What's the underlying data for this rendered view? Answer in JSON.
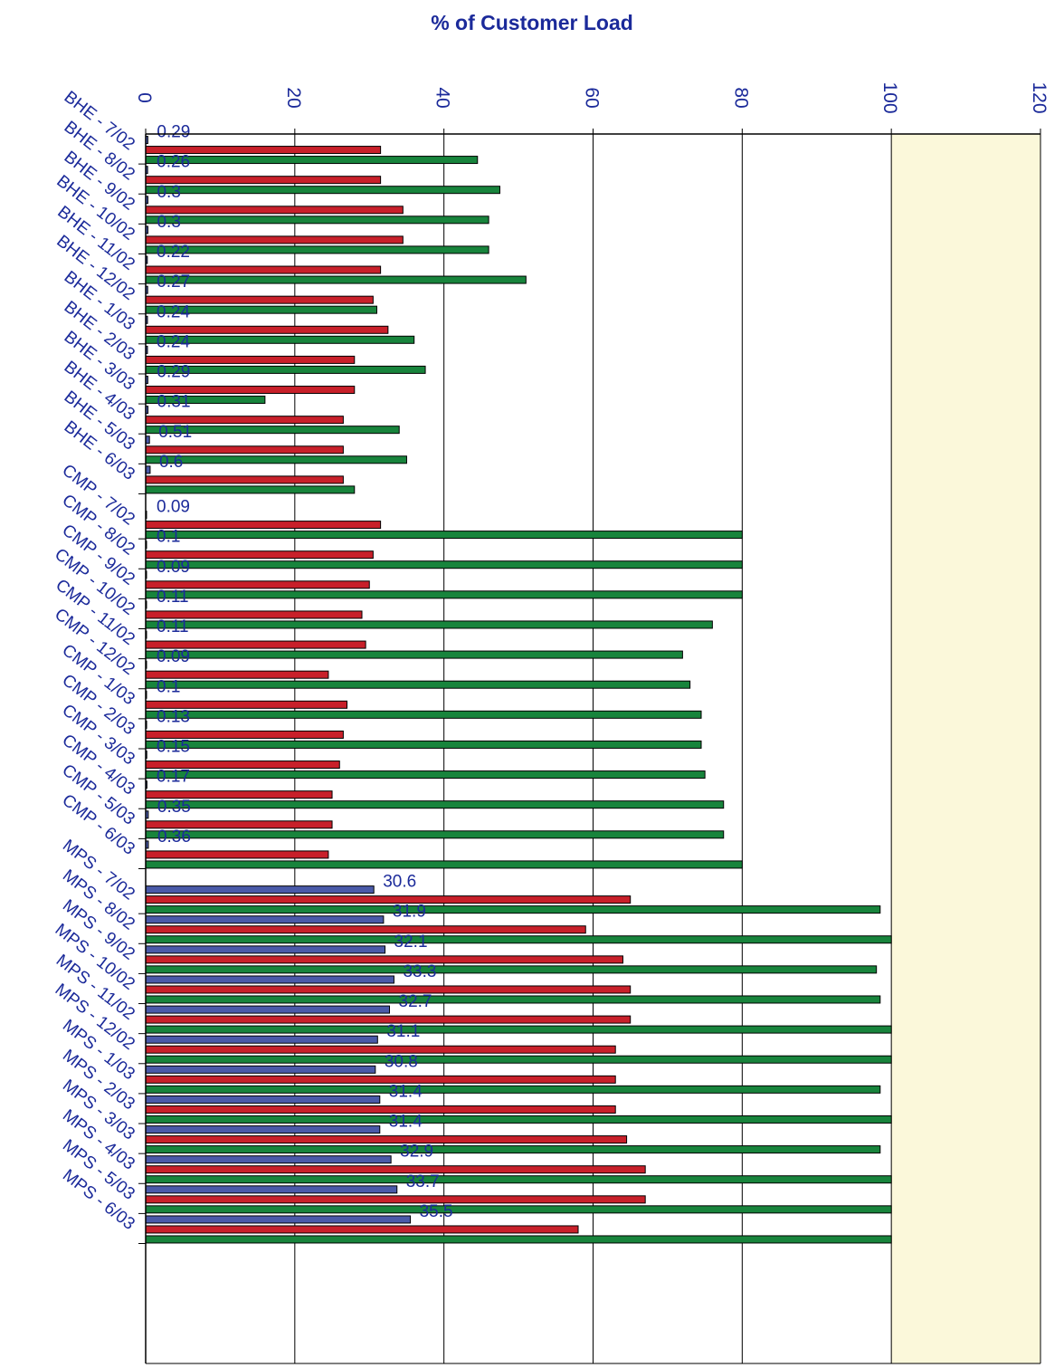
{
  "chart_data": {
    "type": "bar",
    "orientation": "horizontal",
    "title": "% of Customer Load",
    "xlabel": "",
    "ylabel": "",
    "xlim": [
      0,
      120
    ],
    "xticks": [
      "0",
      "20",
      "40",
      "60",
      "80",
      "100",
      "120"
    ],
    "grid": true,
    "legend": "none",
    "groups": [
      {
        "name": "BHE",
        "categories": [
          "BHE - 7/02",
          "BHE - 8/02",
          "BHE - 9/02",
          "BHE - 10/02",
          "BHE - 11/02",
          "BHE - 12/02",
          "BHE - 1/03",
          "BHE - 2/03",
          "BHE - 3/03",
          "BHE - 4/03",
          "BHE - 5/03",
          "BHE - 6/03"
        ]
      },
      {
        "name": "CMP",
        "categories": [
          "CMP - 7/02",
          "CMP - 8/02",
          "CMP - 9/02",
          "CMP - 10/02",
          "CMP - 11/02",
          "CMP - 12/02",
          "CMP - 1/03",
          "CMP - 2/03",
          "CMP - 3/03",
          "CMP - 4/03",
          "CMP - 5/03",
          "CMP - 6/03"
        ]
      },
      {
        "name": "MPS",
        "categories": [
          "MPS - 7/02",
          "MPS - 8/02",
          "MPS - 9/02",
          "MPS - 10/02",
          "MPS - 11/02",
          "MPS - 12/02",
          "MPS - 1/03",
          "MPS - 2/03",
          "MPS - 3/03",
          "MPS - 4/03",
          "MPS - 5/03",
          "MPS - 6/03"
        ]
      }
    ],
    "series": [
      {
        "color": "#4a5aa8",
        "values": [
          0.29,
          0.26,
          0.3,
          0.3,
          0.22,
          0.27,
          0.24,
          0.24,
          0.29,
          0.31,
          0.51,
          0.6,
          0.09,
          0.1,
          0.09,
          0.11,
          0.11,
          0.09,
          0.1,
          0.13,
          0.15,
          0.17,
          0.35,
          0.36,
          30.6,
          31.9,
          32.1,
          33.3,
          32.7,
          31.1,
          30.8,
          31.4,
          31.4,
          32.9,
          33.7,
          35.5
        ],
        "labels": [
          "0.29",
          "0.26",
          "0.3",
          "0.3",
          "0.22",
          "0.27",
          "0.24",
          "0.24",
          "0.29",
          "0.31",
          "0.51",
          "0.6",
          "0.09",
          "0.1",
          "0.09",
          "0.11",
          "0.11",
          "0.09",
          "0.1",
          "0.13",
          "0.15",
          "0.17",
          "0.35",
          "0.36",
          "30.6",
          "31.9",
          "32.1",
          "33.3",
          "32.7",
          "31.1",
          "30.8",
          "31.4",
          "31.4",
          "32.9",
          "33.7",
          "35.5"
        ]
      },
      {
        "color": "#c8202a",
        "values": [
          31.5,
          31.5,
          34.5,
          34.5,
          31.5,
          30.5,
          32.5,
          28,
          28,
          26.5,
          26.5,
          26.5,
          31.5,
          30.5,
          30,
          29,
          29.5,
          24.5,
          27,
          26.5,
          26,
          25,
          25,
          24.5,
          65,
          59,
          64,
          65,
          65,
          63,
          63,
          63,
          64.5,
          67,
          67,
          58
        ]
      },
      {
        "color": "#18843c",
        "values": [
          44.5,
          47.5,
          46,
          46,
          51,
          31,
          36,
          37.5,
          16,
          34,
          35,
          28,
          80,
          80,
          80,
          76,
          72,
          73,
          74.5,
          74.5,
          75,
          77.5,
          77.5,
          80,
          98.5,
          100,
          98,
          98.5,
          100,
          100,
          98.5,
          100,
          98.5,
          100,
          100,
          100
        ]
      }
    ],
    "plot_background": "#fbf8da"
  }
}
